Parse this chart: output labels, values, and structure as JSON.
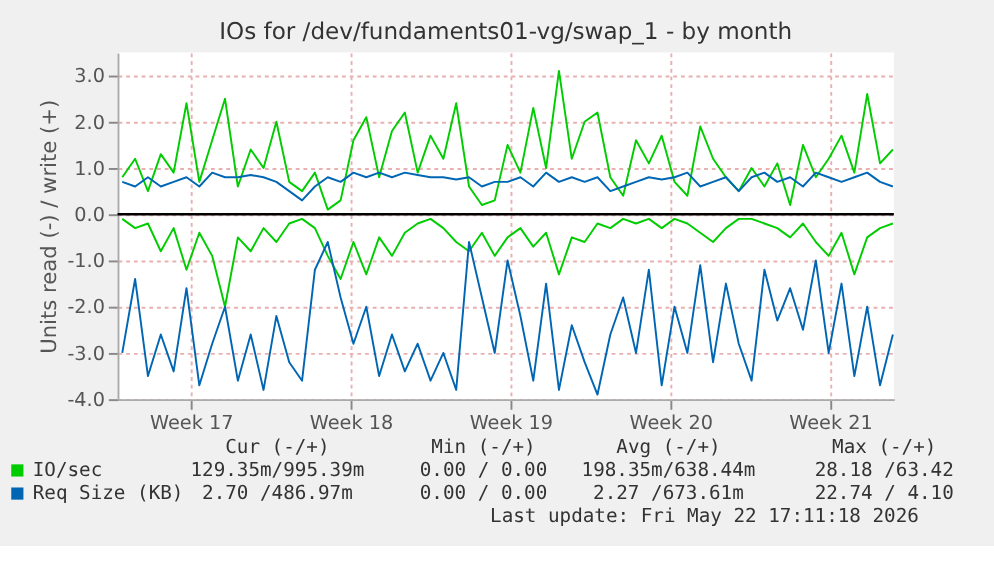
{
  "chart_data": {
    "type": "line",
    "title": "IOs for /dev/fundaments01-vg/swap_1 - by month",
    "ylabel": "Units read (-) / write (+)",
    "x": [
      "2026-04-17T00:00",
      "2026-04-17T13:30",
      "2026-04-18T03:00",
      "2026-04-18T16:30",
      "2026-04-19T06:00",
      "2026-04-19T19:30",
      "2026-04-20T09:00",
      "2026-04-20T22:30",
      "2026-04-21T12:00",
      "2026-04-22T01:30",
      "2026-04-22T15:00",
      "2026-04-23T04:30",
      "2026-04-23T18:00",
      "2026-04-24T07:30",
      "2026-04-24T21:00",
      "2026-04-25T10:30",
      "2026-04-26T00:00",
      "2026-04-26T13:30",
      "2026-04-27T03:00",
      "2026-04-27T16:30",
      "2026-04-28T06:00",
      "2026-04-28T19:30",
      "2026-04-29T09:00",
      "2026-04-29T22:30",
      "2026-04-30T12:00",
      "2026-05-01T01:30",
      "2026-05-01T15:00",
      "2026-05-02T04:30",
      "2026-05-02T18:00",
      "2026-05-03T07:30",
      "2026-05-03T21:00",
      "2026-05-04T10:30",
      "2026-05-05T00:00",
      "2026-05-05T13:30",
      "2026-05-06T03:00",
      "2026-05-06T16:30",
      "2026-05-07T06:00",
      "2026-05-07T19:30",
      "2026-05-08T09:00",
      "2026-05-08T22:30",
      "2026-05-09T12:00",
      "2026-05-10T01:30",
      "2026-05-10T15:00",
      "2026-05-11T04:30",
      "2026-05-11T18:00",
      "2026-05-12T07:30",
      "2026-05-12T21:00",
      "2026-05-13T10:30",
      "2026-05-14T00:00",
      "2026-05-14T13:30",
      "2026-05-15T03:00",
      "2026-05-15T16:30",
      "2026-05-16T06:00",
      "2026-05-16T19:30",
      "2026-05-17T09:00",
      "2026-05-17T22:30",
      "2026-05-18T12:00",
      "2026-05-19T01:30",
      "2026-05-19T15:00",
      "2026-05-20T04:30",
      "2026-05-20T18:00"
    ],
    "series": [
      {
        "name": "IO/sec",
        "color": "#00cc00",
        "values": [
          0.8,
          1.2,
          0.5,
          1.3,
          0.9,
          2.4,
          0.7,
          1.6,
          2.5,
          0.6,
          1.4,
          1.0,
          2.0,
          0.7,
          0.5,
          0.9,
          0.1,
          0.3,
          1.6,
          2.1,
          0.8,
          1.8,
          2.2,
          0.9,
          1.7,
          1.2,
          2.4,
          0.6,
          0.2,
          0.3,
          1.5,
          0.9,
          2.3,
          1.0,
          3.1,
          1.2,
          2.0,
          2.2,
          0.8,
          0.4,
          1.6,
          1.1,
          1.7,
          0.7,
          0.4,
          1.9,
          1.2,
          0.8,
          0.5,
          1.0,
          0.6,
          1.1,
          0.2,
          1.5,
          0.8,
          1.2,
          1.7,
          0.9,
          2.6,
          1.1,
          1.4
        ]
      },
      {
        "color": "#00cc00",
        "values": [
          -0.1,
          -0.3,
          -0.2,
          -0.8,
          -0.3,
          -1.2,
          -0.4,
          -0.9,
          -2.0,
          -0.5,
          -0.8,
          -0.3,
          -0.6,
          -0.2,
          -0.1,
          -0.3,
          -0.9,
          -1.4,
          -0.6,
          -1.3,
          -0.5,
          -0.9,
          -0.4,
          -0.2,
          -0.1,
          -0.3,
          -0.6,
          -0.8,
          -0.4,
          -0.9,
          -0.5,
          -0.3,
          -0.7,
          -0.4,
          -1.3,
          -0.5,
          -0.6,
          -0.2,
          -0.3,
          -0.1,
          -0.2,
          -0.1,
          -0.3,
          -0.1,
          -0.2,
          -0.4,
          -0.6,
          -0.3,
          -0.1,
          -0.1,
          -0.2,
          -0.3,
          -0.5,
          -0.2,
          -0.6,
          -0.9,
          -0.4,
          -1.3,
          -0.5,
          -0.3,
          -0.2
        ]
      },
      {
        "name": "Req Size (KB)",
        "color": "#0066b3",
        "values": [
          0.7,
          0.6,
          0.8,
          0.6,
          0.7,
          0.8,
          0.6,
          0.9,
          0.8,
          0.8,
          0.85,
          0.8,
          0.7,
          0.5,
          0.3,
          0.6,
          0.8,
          0.7,
          0.9,
          0.8,
          0.9,
          0.8,
          0.9,
          0.85,
          0.8,
          0.8,
          0.75,
          0.8,
          0.6,
          0.7,
          0.7,
          0.8,
          0.6,
          0.9,
          0.7,
          0.8,
          0.7,
          0.8,
          0.5,
          0.6,
          0.7,
          0.8,
          0.75,
          0.8,
          0.9,
          0.6,
          0.7,
          0.8,
          0.5,
          0.8,
          0.9,
          0.7,
          0.8,
          0.6,
          0.9,
          0.8,
          0.7,
          0.8,
          0.9,
          0.7,
          0.6
        ]
      },
      {
        "color": "#0066b3",
        "values": [
          -3.0,
          -1.4,
          -3.5,
          -2.6,
          -3.4,
          -1.6,
          -3.7,
          -2.8,
          -2.0,
          -3.6,
          -2.6,
          -3.8,
          -2.2,
          -3.2,
          -3.6,
          -1.2,
          -0.6,
          -1.8,
          -2.8,
          -2.0,
          -3.5,
          -2.6,
          -3.4,
          -2.8,
          -3.6,
          -3.0,
          -3.8,
          -0.6,
          -1.8,
          -3.0,
          -1.0,
          -2.2,
          -3.6,
          -1.5,
          -3.8,
          -2.4,
          -3.2,
          -3.9,
          -2.6,
          -1.8,
          -3.0,
          -1.2,
          -3.7,
          -2.0,
          -3.0,
          -1.1,
          -3.2,
          -1.5,
          -2.8,
          -3.6,
          -1.2,
          -2.3,
          -1.6,
          -2.5,
          -1.0,
          -3.0,
          -1.5,
          -3.5,
          -2.0,
          -3.7,
          -2.6
        ]
      }
    ],
    "xlim": [
      "2026-04-16T19:00",
      "2026-05-20T19:00"
    ],
    "xticks": [
      {
        "value": "2026-04-20",
        "label": "Week 17"
      },
      {
        "value": "2026-04-27",
        "label": "Week 18"
      },
      {
        "value": "2026-05-04",
        "label": "Week 19"
      },
      {
        "value": "2026-05-11",
        "label": "Week 20"
      },
      {
        "value": "2026-05-18",
        "label": "Week 21"
      }
    ],
    "ylim": [
      -4.0,
      3.5
    ],
    "yticks": [
      {
        "value": -4,
        "label": "-4.0"
      },
      {
        "value": -3,
        "label": "-3.0"
      },
      {
        "value": -2,
        "label": "-2.0"
      },
      {
        "value": -1,
        "label": "-1.0"
      },
      {
        "value": 0,
        "label": "0.0"
      },
      {
        "value": 1,
        "label": "1.0"
      },
      {
        "value": 2,
        "label": "2.0"
      },
      {
        "value": 3,
        "label": "3.0"
      }
    ],
    "ref_lines": [
      {
        "axis": "y",
        "value": 0,
        "color": "#000000"
      }
    ],
    "grid": true,
    "legend": "bottom left",
    "marker": "none",
    "annotations": [
      "Cur (-/+)",
      "Min (-/+)",
      "Avg (-/+)",
      "Max (-/+)",
      "129.35m/995.39m",
      "0.00 / 0.00",
      "198.35m/638.44m",
      "28.18 /63.42",
      "2.70 /486.97m",
      "0.00 / 0.00",
      "2.27 /673.61m",
      "22.74 / 4.10",
      "Last update: Fri May 22 17:11:18 2026"
    ]
  }
}
